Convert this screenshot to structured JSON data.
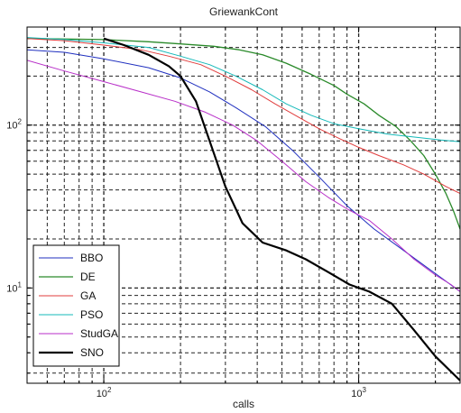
{
  "chart_data": {
    "type": "line",
    "title": "GriewankCont",
    "xlabel": "calls",
    "ylabel": "",
    "xscale": "log",
    "yscale": "log",
    "xlim": [
      50,
      2500
    ],
    "ylim": [
      2.6,
      400
    ],
    "grid": true,
    "legend_position": "bottom-left",
    "xticks": [
      {
        "value": 100,
        "base": "10",
        "exp": "2"
      },
      {
        "value": 1000,
        "base": "10",
        "exp": "3"
      }
    ],
    "yticks": [
      {
        "value": 10,
        "base": "10",
        "exp": "1"
      },
      {
        "value": 100,
        "base": "10",
        "exp": "2"
      }
    ],
    "series": [
      {
        "name": "BBO",
        "color": "#1f2fbf",
        "width": 1,
        "x": [
          50,
          70,
          100,
          150,
          200,
          260,
          330,
          430,
          550,
          700,
          900,
          1150,
          1500,
          1900,
          2200,
          2500
        ],
        "y": [
          290,
          280,
          255,
          225,
          195,
          160,
          128,
          98,
          70,
          48,
          32,
          23,
          17,
          13,
          11,
          9.5
        ]
      },
      {
        "name": "DE",
        "color": "#2a8a2a",
        "width": 1.3,
        "x": [
          50,
          100,
          150,
          200,
          270,
          340,
          420,
          520,
          650,
          800,
          900,
          1050,
          1200,
          1400,
          1600,
          1800,
          2000,
          2200,
          2350,
          2500
        ],
        "y": [
          340,
          335,
          325,
          315,
          305,
          290,
          270,
          240,
          205,
          175,
          155,
          135,
          115,
          98,
          80,
          65,
          50,
          38,
          30,
          23
        ]
      },
      {
        "name": "GA",
        "color": "#e03c3c",
        "width": 1,
        "x": [
          50,
          70,
          100,
          140,
          180,
          240,
          300,
          380,
          470,
          580,
          700,
          850,
          1000,
          1200,
          1500,
          1800,
          2200,
          2500
        ],
        "y": [
          340,
          330,
          310,
          290,
          265,
          235,
          200,
          165,
          135,
          112,
          95,
          82,
          73,
          65,
          57,
          50,
          42,
          38
        ]
      },
      {
        "name": "PSO",
        "color": "#14b9b9",
        "width": 1,
        "x": [
          50,
          70,
          100,
          150,
          200,
          260,
          330,
          420,
          520,
          650,
          800,
          1000,
          1300,
          1700,
          2100,
          2500
        ],
        "y": [
          345,
          335,
          320,
          300,
          265,
          235,
          200,
          165,
          135,
          115,
          102,
          95,
          88,
          84,
          81,
          79
        ]
      },
      {
        "name": "StudGA",
        "color": "#b82ec8",
        "width": 1,
        "x": [
          50,
          70,
          100,
          140,
          190,
          250,
          320,
          400,
          500,
          620,
          760,
          920,
          1100,
          1350,
          1650,
          2000,
          2300,
          2500
        ],
        "y": [
          250,
          215,
          185,
          160,
          140,
          120,
          100,
          80,
          60,
          45,
          36,
          30,
          26,
          20,
          15,
          12,
          10.5,
          9.5
        ]
      },
      {
        "name": "SNO",
        "color": "#000000",
        "width": 2.2,
        "x": [
          100,
          120,
          150,
          180,
          200,
          230,
          260,
          300,
          350,
          420,
          520,
          620,
          760,
          920,
          1100,
          1350,
          1650,
          2000,
          2500
        ],
        "y": [
          340,
          310,
          270,
          230,
          200,
          140,
          80,
          42,
          25,
          19,
          17,
          15,
          12.5,
          10.5,
          9.5,
          8,
          5.5,
          3.8,
          2.7
        ]
      }
    ]
  }
}
